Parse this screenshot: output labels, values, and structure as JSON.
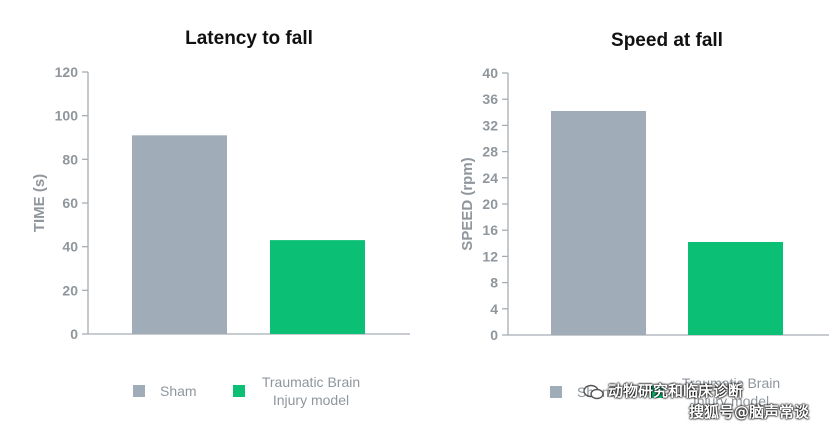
{
  "chart_data": [
    {
      "type": "bar",
      "title": "Latency to fall",
      "ylabel": "TIME (s)",
      "xlabel": "",
      "ylim": [
        0,
        120
      ],
      "yticks": [
        0,
        20,
        40,
        60,
        80,
        100,
        120
      ],
      "categories": [
        "Sham",
        "Traumatic Brain Injury model"
      ],
      "values": [
        91,
        43
      ],
      "colors": [
        "#a0adb8",
        "#0bbf75"
      ],
      "legend": [
        "Sham",
        "Traumatic Brain",
        "Injury model"
      ],
      "legend_position": "bottom"
    },
    {
      "type": "bar",
      "title": "Speed at fall",
      "ylabel": "SPEED (rpm)",
      "xlabel": "",
      "ylim": [
        0,
        40
      ],
      "yticks": [
        0,
        4,
        8,
        12,
        16,
        20,
        24,
        28,
        32,
        36,
        40
      ],
      "categories": [
        "Sham",
        "Traumatic Brain Injury model"
      ],
      "values": [
        34.2,
        14.2
      ],
      "colors": [
        "#a0adb8",
        "#0bbf75"
      ],
      "legend": [
        "Sham",
        "Traumatic Brain",
        "Injury model"
      ],
      "legend_position": "bottom"
    }
  ],
  "watermark": {
    "line1": "动物研究和临床诊断",
    "line2": "搜狐号@脑声常谈"
  }
}
